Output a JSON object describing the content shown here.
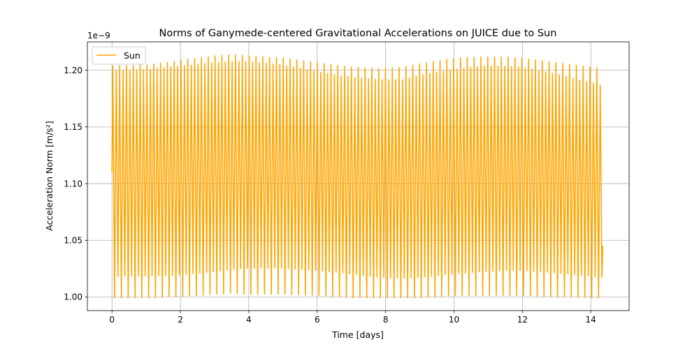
{
  "chart_data": {
    "type": "line",
    "title": "Norms of Ganymede-centered Gravitational Accelerations on JUICE due to Sun",
    "xlabel": "Time [days]",
    "ylabel": "Acceleration Norm [m/s²]",
    "y_offset_text": "1e−9",
    "xlim": [
      -0.72,
      15.12
    ],
    "ylim": [
      0.988,
      1.225
    ],
    "x_ticks": [
      0,
      2,
      4,
      6,
      8,
      10,
      12,
      14
    ],
    "x_tick_labels": [
      "0",
      "2",
      "4",
      "6",
      "8",
      "10",
      "12",
      "14"
    ],
    "y_ticks": [
      1.0,
      1.05,
      1.1,
      1.15,
      1.2
    ],
    "y_tick_labels": [
      "1.00",
      "1.05",
      "1.10",
      "1.15",
      "1.20"
    ],
    "grid": true,
    "legend": {
      "placement": "top-left",
      "entries": [
        "Sun"
      ]
    },
    "series": [
      {
        "name": "Sun",
        "color": "#FFA500",
        "x_start": 0,
        "x_end": 14.35,
        "start_value": 1.11,
        "end_value": 1.045,
        "cycles": 144,
        "description_points": {
          "x": [
            0,
            1,
            2,
            3,
            3.5,
            4,
            5,
            6,
            7,
            7.8,
            8.5,
            9,
            10,
            10.8,
            11.5,
            12,
            13,
            14.3
          ],
          "upper_envelope": [
            1.204,
            1.205,
            1.209,
            1.213,
            1.214,
            1.213,
            1.211,
            1.207,
            1.203,
            1.202,
            1.203,
            1.206,
            1.211,
            1.212,
            1.212,
            1.211,
            1.207,
            1.202
          ],
          "inner_upper": [
            1.2,
            1.201,
            1.204,
            1.207,
            1.208,
            1.208,
            1.205,
            1.199,
            1.194,
            1.192,
            1.192,
            1.196,
            1.201,
            1.204,
            1.204,
            1.203,
            1.197,
            1.187
          ],
          "lower_envelope": [
            0.999,
            0.999,
            1.0,
            1.002,
            1.003,
            1.002,
            1.002,
            1.001,
            0.999,
            0.999,
            0.999,
            0.999,
            1.001,
            1.001,
            1.001,
            1.001,
            1.0,
            0.999
          ],
          "inner_lower": [
            1.018,
            1.018,
            1.019,
            1.022,
            1.024,
            1.025,
            1.025,
            1.023,
            1.02,
            1.017,
            1.016,
            1.017,
            1.02,
            1.022,
            1.023,
            1.023,
            1.021,
            1.017
          ]
        }
      }
    ]
  }
}
